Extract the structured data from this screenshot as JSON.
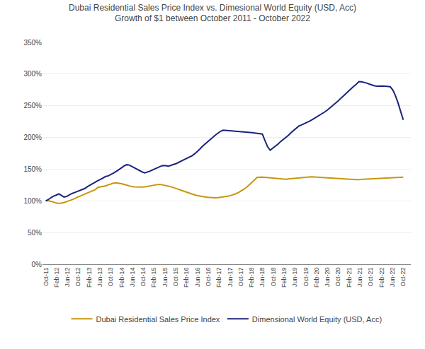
{
  "chart_data": {
    "type": "line",
    "title": "Dubai Residential Sales Price Index vs. Dimesional World Equity (USD, Acc)",
    "subtitle": "Growth of $1 between October 2011 - October 2022",
    "xlim": [
      -0.3,
      33.7
    ],
    "xticks": [
      {
        "value": 0,
        "label": "Oct-11"
      },
      {
        "value": 1,
        "label": "Feb-12"
      },
      {
        "value": 2,
        "label": "Jun-12"
      },
      {
        "value": 3,
        "label": "Oct-12"
      },
      {
        "value": 4,
        "label": "Feb-13"
      },
      {
        "value": 5,
        "label": "Jun-13"
      },
      {
        "value": 6,
        "label": "Oct-13"
      },
      {
        "value": 7,
        "label": "Feb-14"
      },
      {
        "value": 8,
        "label": "Jun-14"
      },
      {
        "value": 9,
        "label": "Oct-14"
      },
      {
        "value": 10,
        "label": "Feb-15"
      },
      {
        "value": 11,
        "label": "Jun-15"
      },
      {
        "value": 12,
        "label": "Oct-15"
      },
      {
        "value": 13,
        "label": "Feb-16"
      },
      {
        "value": 14,
        "label": "Jun-16"
      },
      {
        "value": 15,
        "label": "Oct-16"
      },
      {
        "value": 16,
        "label": "Feb-17"
      },
      {
        "value": 17,
        "label": "Jun-17"
      },
      {
        "value": 18,
        "label": "Oct-17"
      },
      {
        "value": 19,
        "label": "Feb-18"
      },
      {
        "value": 20,
        "label": "Jun-18"
      },
      {
        "value": 21,
        "label": "Oct-18"
      },
      {
        "value": 22,
        "label": "Feb-19"
      },
      {
        "value": 23,
        "label": "Jun-19"
      },
      {
        "value": 24,
        "label": "Oct-19"
      },
      {
        "value": 25,
        "label": "Feb-20"
      },
      {
        "value": 26,
        "label": "Jun-20"
      },
      {
        "value": 27,
        "label": "Oct-20"
      },
      {
        "value": 28,
        "label": "Feb-21"
      },
      {
        "value": 29,
        "label": "Jun-21"
      },
      {
        "value": 30,
        "label": "Oct-21"
      },
      {
        "value": 31,
        "label": "Feb-22"
      },
      {
        "value": 32,
        "label": "Jun-22"
      },
      {
        "value": 33,
        "label": "Oct-22"
      }
    ],
    "ylim": [
      0.0,
      3.5
    ],
    "yticks": [
      {
        "value": 0.0,
        "label": "0%"
      },
      {
        "value": 0.5,
        "label": "50%"
      },
      {
        "value": 1.0,
        "label": "100%"
      },
      {
        "value": 1.5,
        "label": "150%"
      },
      {
        "value": 2.0,
        "label": "200%"
      },
      {
        "value": 2.5,
        "label": "250%"
      },
      {
        "value": 3.0,
        "label": "300%"
      },
      {
        "value": 3.5,
        "label": "350%"
      }
    ],
    "grid": "y",
    "legend": "bottom",
    "series": [
      {
        "name": "Dubai Residential Sales Price Index",
        "color": "#C8960C",
        "values": [
          1.0,
          1.003,
          0.993,
          0.975,
          0.966,
          0.959,
          0.963,
          0.973,
          0.988,
          1.003,
          1.013,
          1.033,
          1.055,
          1.073,
          1.095,
          1.107,
          1.125,
          1.148,
          1.168,
          1.178,
          1.213,
          1.22,
          1.235,
          1.237,
          1.253,
          1.268,
          1.278,
          1.285,
          1.28,
          1.27,
          1.26,
          1.248,
          1.23,
          1.225,
          1.22,
          1.218,
          1.215,
          1.218,
          1.22,
          1.228,
          1.235,
          1.25,
          1.255,
          1.258,
          1.258,
          1.252,
          1.243,
          1.232,
          1.222,
          1.21,
          1.195,
          1.18,
          1.165,
          1.15,
          1.138,
          1.125,
          1.108,
          1.095,
          1.085,
          1.075,
          1.068,
          1.062,
          1.055,
          1.05,
          1.048,
          1.048,
          1.05,
          1.055,
          1.06,
          1.068,
          1.075,
          1.085,
          1.098,
          1.115,
          1.135,
          1.158,
          1.185,
          1.215,
          1.25,
          1.29,
          1.33,
          1.37,
          1.375,
          1.375,
          1.372,
          1.368,
          1.362,
          1.355,
          1.35,
          1.345,
          1.34,
          1.338,
          1.34,
          1.345,
          1.35,
          1.355,
          1.358,
          1.36,
          1.362,
          1.368,
          1.372,
          1.376,
          1.38,
          1.375,
          1.372,
          1.37,
          1.368,
          1.365,
          1.362,
          1.36,
          1.358,
          1.355,
          1.352,
          1.35,
          1.348,
          1.345,
          1.342,
          1.34,
          1.338,
          1.336,
          1.336,
          1.338,
          1.34,
          1.342,
          1.345,
          1.348,
          1.35,
          1.353,
          1.355,
          1.358,
          1.36,
          1.363,
          1.365,
          1.368,
          1.37,
          1.372,
          1.374,
          1.375
        ]
      },
      {
        "name": "Dimensional World Equity (USD, Acc)",
        "color": "#1a237e",
        "values": [
          1.0,
          1.02,
          1.05,
          1.075,
          1.09,
          1.11,
          1.085,
          1.06,
          1.07,
          1.095,
          1.115,
          1.13,
          1.145,
          1.165,
          1.18,
          1.195,
          1.225,
          1.25,
          1.275,
          1.295,
          1.32,
          1.34,
          1.365,
          1.385,
          1.395,
          1.415,
          1.44,
          1.465,
          1.49,
          1.52,
          1.55,
          1.57,
          1.565,
          1.542,
          1.52,
          1.492,
          1.47,
          1.455,
          1.442,
          1.455,
          1.47,
          1.49,
          1.505,
          1.525,
          1.545,
          1.558,
          1.555,
          1.548,
          1.56,
          1.572,
          1.588,
          1.608,
          1.628,
          1.648,
          1.668,
          1.688,
          1.71,
          1.74,
          1.775,
          1.815,
          1.858,
          1.895,
          1.932,
          1.968,
          2.005,
          2.038,
          2.068,
          2.098,
          2.115,
          2.112,
          2.108,
          2.105,
          2.102,
          2.098,
          2.095,
          2.09,
          2.085,
          2.08,
          2.078,
          2.075,
          2.07,
          2.065,
          2.06,
          2.055,
          1.952,
          1.855,
          1.8,
          1.83,
          1.86,
          1.895,
          1.935,
          1.965,
          1.998,
          2.035,
          2.075,
          2.11,
          2.145,
          2.18,
          2.198,
          2.215,
          2.235,
          2.255,
          2.278,
          2.302,
          2.325,
          2.352,
          2.378,
          2.405,
          2.435,
          2.468,
          2.502,
          2.54,
          2.575,
          2.615,
          2.655,
          2.695,
          2.732,
          2.768,
          2.805,
          2.84,
          2.88,
          2.878,
          2.87,
          2.858,
          2.842,
          2.825,
          2.815,
          2.81,
          2.815,
          2.812,
          2.808,
          2.805,
          2.8,
          2.75,
          2.66,
          2.545,
          2.42,
          2.278
        ]
      }
    ]
  }
}
